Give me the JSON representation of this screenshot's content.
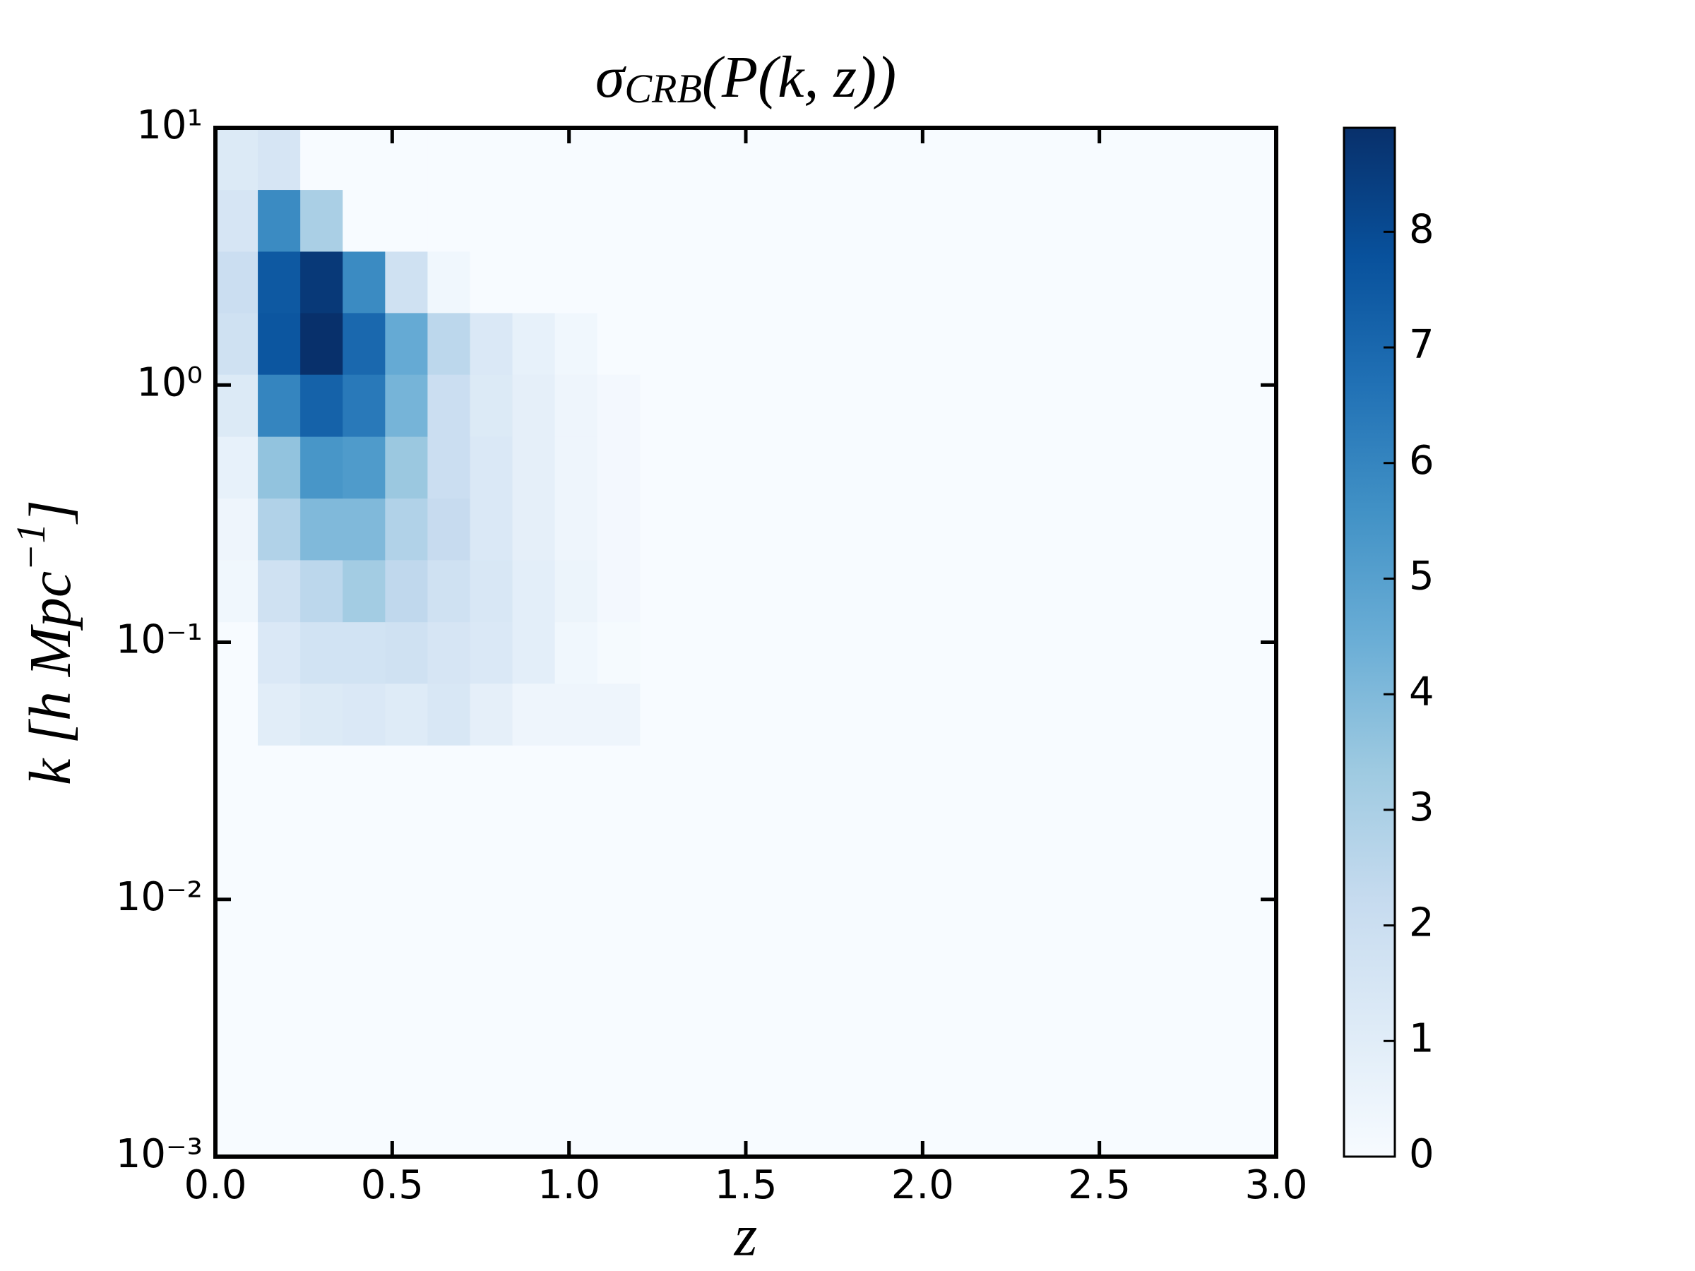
{
  "chart_data": {
    "type": "heatmap",
    "title": {
      "symbol": "σ",
      "subscript": "CRB",
      "rest": "(P(k, z))"
    },
    "x_label": "z",
    "y_label": {
      "text": "k [h Mpc",
      "superscript": "−1",
      "close": "]"
    },
    "x_edges": [
      0,
      0.12,
      0.24,
      0.36,
      0.48,
      0.6,
      0.72,
      0.84,
      0.96,
      1.08,
      1.2
    ],
    "y_edges": [
      0.0398,
      0.0692,
      0.12,
      0.209,
      0.363,
      0.631,
      1.1,
      1.91,
      3.31,
      5.75,
      10
    ],
    "values": [
      [
        0,
        1.0,
        1.2,
        1.3,
        1.1,
        1.4,
        0.8,
        0.4,
        0.4,
        0.4
      ],
      [
        0,
        1.3,
        1.7,
        1.7,
        1.8,
        1.5,
        1.3,
        0.9,
        0.3,
        0.1
      ],
      [
        0.3,
        1.8,
        2.5,
        3.2,
        2.4,
        1.8,
        1.4,
        0.9,
        0.5,
        0.2
      ],
      [
        0.4,
        2.8,
        4.0,
        4.0,
        2.8,
        2.2,
        1.3,
        0.8,
        0.4,
        0.2
      ],
      [
        0.7,
        3.6,
        5.4,
        5.2,
        3.4,
        2.0,
        1.3,
        0.8,
        0.4,
        0.2
      ],
      [
        1.2,
        6.0,
        7.2,
        6.4,
        4.2,
        2.0,
        1.2,
        0.8,
        0.4,
        0.2
      ],
      [
        1.8,
        7.6,
        8.9,
        7.0,
        4.6,
        2.5,
        1.3,
        0.7,
        0.3,
        0
      ],
      [
        2.0,
        7.5,
        8.6,
        5.8,
        1.8,
        0.3,
        0,
        0,
        0,
        0
      ],
      [
        1.5,
        5.8,
        3.0,
        0,
        0,
        0,
        0,
        0,
        0,
        0
      ],
      [
        1.2,
        1.5,
        0,
        0,
        0,
        0,
        0,
        0,
        0,
        0
      ]
    ],
    "xlim": [
      0,
      3
    ],
    "xticks": [
      {
        "value": 0,
        "label": "0.0"
      },
      0.5,
      {
        "value": 1,
        "label": "1.0"
      },
      1.5,
      {
        "value": 2,
        "label": "2.0"
      },
      2.5,
      {
        "value": 3,
        "label": "3.0"
      }
    ],
    "yscale": "log",
    "ylim": [
      0.001,
      10
    ],
    "yticks": [
      {
        "value": 0.001,
        "label": "10⁻³"
      },
      {
        "value": 0.01,
        "label": "10⁻²"
      },
      {
        "value": 0.1,
        "label": "10⁻¹"
      },
      {
        "value": 1,
        "label": "10⁰"
      },
      {
        "value": 10,
        "label": "10¹"
      }
    ],
    "colormap": [
      "#f7fbff",
      "#deebf7",
      "#c6dbef",
      "#9ecae1",
      "#6baed6",
      "#4292c6",
      "#2171b5",
      "#08519c",
      "#08306b"
    ],
    "clim": [
      0,
      8.9
    ],
    "cticks": [
      0,
      1,
      2,
      3,
      4,
      5,
      6,
      7,
      8
    ]
  }
}
